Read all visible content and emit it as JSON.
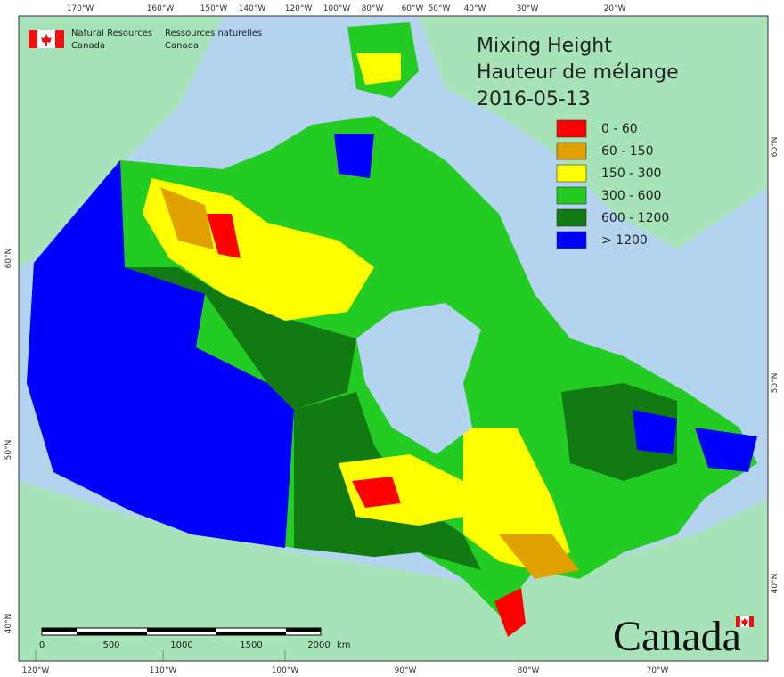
{
  "header": {
    "org_en": [
      "Natural Resources",
      "Canada"
    ],
    "org_fr": [
      "Ressources naturelles",
      "Canada"
    ]
  },
  "title": [
    "Mixing Height",
    "Hauteur de mélange",
    "2016-05-13"
  ],
  "legend": [
    {
      "label": "0 - 60",
      "color": "#ff0000"
    },
    {
      "label": "60 - 150",
      "color": "#e0a000"
    },
    {
      "label": "150 - 300",
      "color": "#ffff00"
    },
    {
      "label": "300 - 600",
      "color": "#22cc22"
    },
    {
      "label": "600 - 1200",
      "color": "#127a12"
    },
    {
      "label": "> 1200",
      "color": "#0000ff"
    }
  ],
  "graticule": {
    "top": [
      "170°W",
      "160°W",
      "150°W",
      "140°W",
      "120°W",
      "100°W",
      "80°W",
      "60°W",
      "50°W",
      "40°W",
      "30°W",
      "20°W"
    ],
    "bottom": [
      "120°W",
      "110°W",
      "100°W",
      "90°W",
      "80°W",
      "70°W"
    ],
    "left": [
      "60°N",
      "50°N",
      "40°N"
    ],
    "right": [
      "60°N",
      "50°N",
      "40°N"
    ]
  },
  "scale_bar": {
    "labels": [
      "0",
      "500",
      "1000",
      "1500",
      "2000"
    ],
    "unit": "km"
  },
  "wordmark": "Canada"
}
